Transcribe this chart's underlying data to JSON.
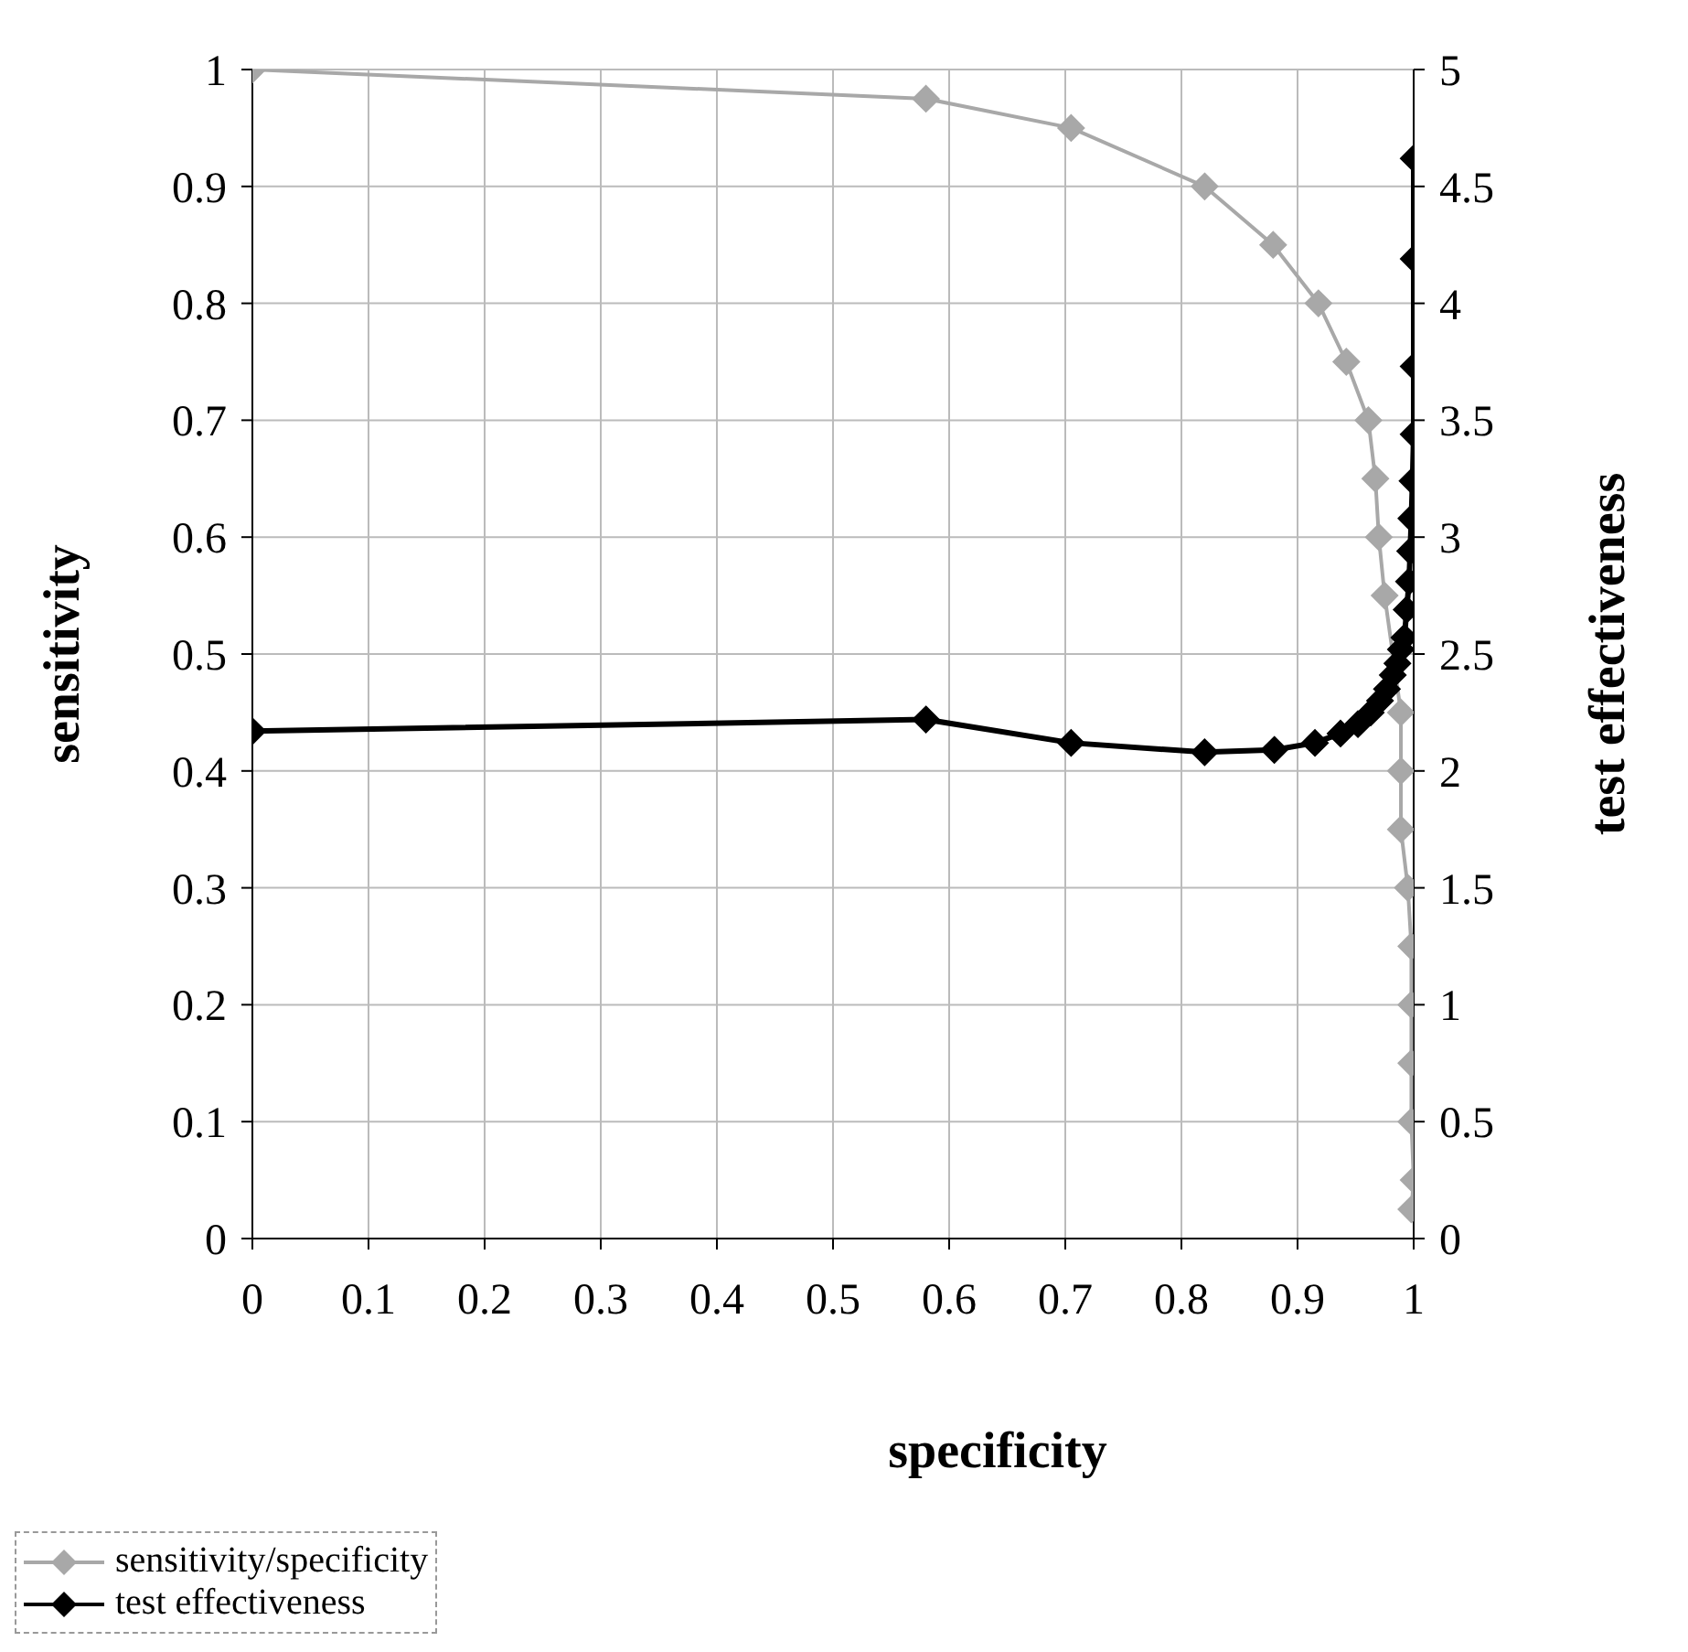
{
  "chart_data": {
    "type": "line",
    "xlabel": "specificity",
    "ylabel": "sensitivity",
    "y2label": "test effectiveness",
    "xlim": [
      0,
      1
    ],
    "xticks": [
      0,
      0.1,
      0.2,
      0.3,
      0.4,
      0.5,
      0.6,
      0.7,
      0.8,
      0.9,
      1
    ],
    "ylim": [
      0,
      1
    ],
    "yticks": [
      0,
      0.1,
      0.2,
      0.3,
      0.4,
      0.5,
      0.6,
      0.7,
      0.8,
      0.9,
      1
    ],
    "y2lim": [
      0,
      5
    ],
    "y2ticks": [
      0,
      0.5,
      1,
      1.5,
      2,
      2.5,
      3,
      3.5,
      4,
      4.5,
      5
    ],
    "grid": true,
    "legend": "bottom left",
    "marker": "diamond",
    "line_style": "solid",
    "series": [
      {
        "name": "sensitivity/specificity",
        "color": "#a8a8a8",
        "x": [
          0,
          0.58,
          0.705,
          0.82,
          0.879,
          0.918,
          0.942,
          0.961,
          0.967,
          0.97,
          0.975,
          0.98,
          0.989,
          0.989,
          0.989,
          0.995,
          0.998,
          0.998,
          0.998,
          0.998,
          1,
          0.998
        ],
        "values": [
          1,
          0.975,
          0.95,
          0.9,
          0.85,
          0.8,
          0.75,
          0.7,
          0.65,
          0.6,
          0.55,
          null,
          0.45,
          0.4,
          0.35,
          0.3,
          0.25,
          0.2,
          0.15,
          0.1,
          0.05,
          0.025
        ]
      },
      {
        "name": "test effectiveness",
        "color": "#000000",
        "axis": "y2",
        "x": [
          0,
          0.58,
          0.705,
          0.82,
          0.88,
          0.915,
          0.937,
          0.952,
          0.963,
          0.971,
          0.977,
          0.982,
          0.986,
          0.989,
          0.992,
          0.994,
          0.996,
          0.997,
          0.998,
          0.999,
          1,
          1,
          1,
          1
        ],
        "values": [
          2.17,
          2.22,
          2.12,
          2.08,
          2.09,
          2.12,
          2.16,
          2.2,
          2.25,
          2.3,
          2.35,
          2.41,
          2.46,
          2.52,
          2.57,
          2.69,
          2.81,
          2.94,
          3.08,
          3.24,
          3.44,
          3.73,
          4.19,
          4.62
        ]
      }
    ]
  }
}
